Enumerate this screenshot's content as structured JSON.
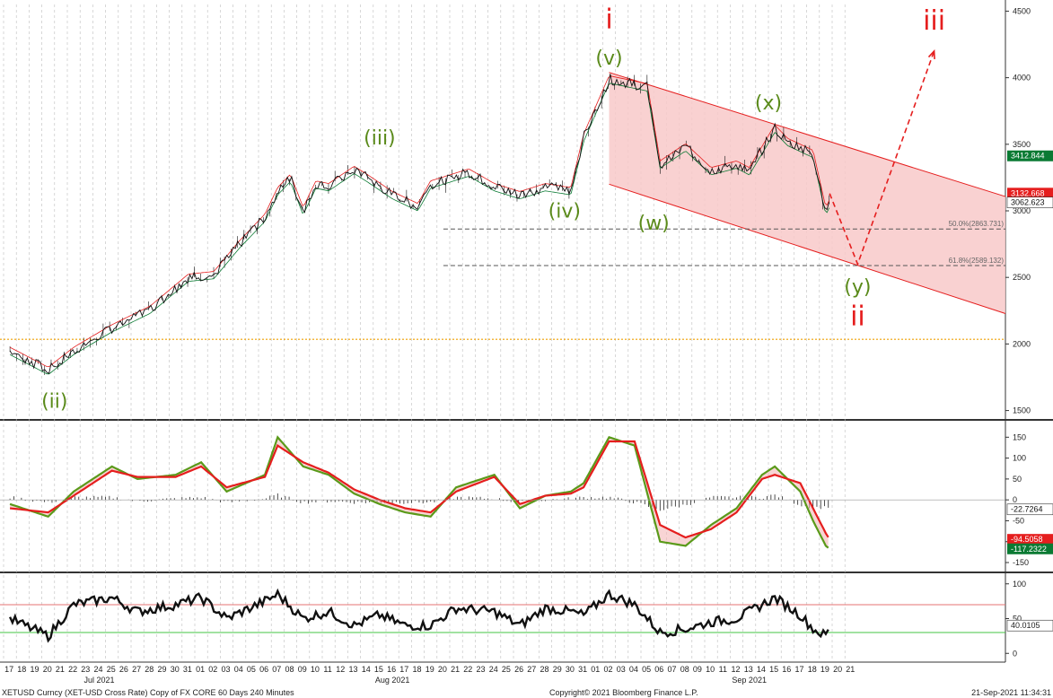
{
  "chart_data": {
    "type": "line",
    "instrument": "XETUSD Curncy (XET-USD Cross Rate) Copy of FX CORE 60 Days 240 Minutes",
    "copyright": "Copyright© 2021 Bloomberg Finance L.P.",
    "timestamp": "21-Sep-2021 11:34:31",
    "day_labels": [
      "17",
      "18",
      "19",
      "20",
      "21",
      "22",
      "23",
      "24",
      "25",
      "26",
      "27",
      "28",
      "29",
      "30",
      "31",
      "01",
      "02",
      "03",
      "04",
      "05",
      "06",
      "07",
      "08",
      "09",
      "10",
      "11",
      "12",
      "13",
      "14",
      "15",
      "16",
      "17",
      "18",
      "19",
      "20",
      "21",
      "22",
      "23",
      "24",
      "25",
      "26",
      "27",
      "28",
      "29",
      "30",
      "31",
      "01",
      "02",
      "03",
      "04",
      "05",
      "06",
      "07",
      "08",
      "09",
      "10",
      "11",
      "12",
      "13",
      "14",
      "15",
      "16",
      "17",
      "18",
      "19",
      "20",
      "21"
    ],
    "month_labels": [
      {
        "label": "Jul 2021",
        "day_index": 7
      },
      {
        "label": "Aug 2021",
        "day_index": 30
      },
      {
        "label": "Sep 2021",
        "day_index": 58
      }
    ],
    "price_panel": {
      "yticks": [
        1500,
        2000,
        2500,
        3000,
        3500,
        4000,
        4500
      ],
      "ylim": [
        1450,
        4550
      ],
      "price_path": [
        [
          0,
          1950
        ],
        [
          3,
          1800
        ],
        [
          5,
          1950
        ],
        [
          8,
          2120
        ],
        [
          11,
          2260
        ],
        [
          14,
          2500
        ],
        [
          16,
          2520
        ],
        [
          18,
          2750
        ],
        [
          20,
          2950
        ],
        [
          21,
          3150
        ],
        [
          22,
          3250
        ],
        [
          23,
          3000
        ],
        [
          24,
          3200
        ],
        [
          25,
          3180
        ],
        [
          27,
          3310
        ],
        [
          28,
          3250
        ],
        [
          30,
          3120
        ],
        [
          32,
          3030
        ],
        [
          33,
          3200
        ],
        [
          36,
          3290
        ],
        [
          38,
          3180
        ],
        [
          40,
          3120
        ],
        [
          42,
          3180
        ],
        [
          44,
          3150
        ],
        [
          45,
          3550
        ],
        [
          47,
          3990
        ],
        [
          50,
          3930
        ],
        [
          51,
          3350
        ],
        [
          53,
          3480
        ],
        [
          55,
          3300
        ],
        [
          57,
          3350
        ],
        [
          58,
          3300
        ],
        [
          60,
          3620
        ],
        [
          61,
          3520
        ],
        [
          63,
          3430
        ],
        [
          64,
          3000
        ],
        [
          64.3,
          3060
        ]
      ],
      "last_values": [
        {
          "value": 3412.844,
          "label": "3412.844",
          "color": "#0a7a33"
        },
        {
          "value": 3132.668,
          "label": "3132.668",
          "color": "#e51e1e"
        },
        {
          "value": 3062.623,
          "label": "3062.623",
          "color": "#ffffff"
        }
      ],
      "horizontal_levels": [
        {
          "value": 2863.731,
          "label": "50.0%(2863.731)",
          "style": "dashed",
          "color": "#555555"
        },
        {
          "value": 2589.132,
          "label": "61.8%(2589.132)",
          "style": "dashed",
          "color": "#555555"
        },
        {
          "value": 2035,
          "label": "",
          "style": "dotted",
          "color": "#f0a000"
        }
      ],
      "channel": {
        "upper": [
          [
            47,
            4040
          ],
          [
            79,
            3080
          ]
        ],
        "lower": [
          [
            47,
            3200
          ],
          [
            79,
            2200
          ]
        ],
        "fill": "#f8c9c9",
        "stroke": "#e51e1e"
      },
      "wave_labels": [
        {
          "text": "(ii)",
          "day": 3.5,
          "price": 1520,
          "color": "#5a8a1a"
        },
        {
          "text": "(iii)",
          "day": 29,
          "price": 3500,
          "color": "#5a8a1a"
        },
        {
          "text": "(iv)",
          "day": 43.5,
          "price": 2950,
          "color": "#5a8a1a"
        },
        {
          "text": "(v)",
          "day": 47,
          "price": 4100,
          "color": "#5a8a1a"
        },
        {
          "text": "i",
          "day": 47,
          "price": 4370,
          "color": "#e51e1e"
        },
        {
          "text": "(w)",
          "day": 50.5,
          "price": 2860,
          "color": "#5a8a1a"
        },
        {
          "text": "(x)",
          "day": 59.5,
          "price": 3760,
          "color": "#5a8a1a"
        },
        {
          "text": "(y)",
          "day": 66.5,
          "price": 2380,
          "color": "#5a8a1a"
        },
        {
          "text": "ii",
          "day": 66.5,
          "price": 2140,
          "color": "#e51e1e"
        },
        {
          "text": "iii",
          "day": 72.5,
          "price": 4360,
          "color": "#e51e1e"
        }
      ],
      "projection": [
        [
          64.3,
          3130
        ],
        [
          66.5,
          2600
        ],
        [
          72.5,
          4200
        ]
      ],
      "projection_color": "#e51e1e"
    },
    "oscillator_panel": {
      "yticks": [
        -150,
        -100,
        -50,
        0,
        50,
        100,
        150
      ],
      "ylim": [
        -165,
        170
      ],
      "green_path": [
        [
          0,
          -10
        ],
        [
          3,
          -40
        ],
        [
          5,
          20
        ],
        [
          8,
          80
        ],
        [
          10,
          50
        ],
        [
          13,
          60
        ],
        [
          15,
          90
        ],
        [
          17,
          20
        ],
        [
          20,
          60
        ],
        [
          21,
          150
        ],
        [
          23,
          80
        ],
        [
          25,
          60
        ],
        [
          27,
          15
        ],
        [
          29,
          -10
        ],
        [
          31,
          -30
        ],
        [
          33,
          -40
        ],
        [
          35,
          30
        ],
        [
          38,
          60
        ],
        [
          40,
          -20
        ],
        [
          42,
          10
        ],
        [
          44,
          20
        ],
        [
          45,
          40
        ],
        [
          47,
          150
        ],
        [
          49,
          130
        ],
        [
          51,
          -100
        ],
        [
          53,
          -110
        ],
        [
          55,
          -60
        ],
        [
          57,
          -20
        ],
        [
          59,
          60
        ],
        [
          60,
          80
        ],
        [
          62,
          20
        ],
        [
          63,
          -50
        ],
        [
          64,
          -110
        ],
        [
          64.3,
          -117
        ]
      ],
      "red_path": [
        [
          0,
          -20
        ],
        [
          3,
          -30
        ],
        [
          5,
          10
        ],
        [
          8,
          70
        ],
        [
          10,
          55
        ],
        [
          13,
          55
        ],
        [
          15,
          80
        ],
        [
          17,
          30
        ],
        [
          20,
          55
        ],
        [
          21,
          130
        ],
        [
          23,
          90
        ],
        [
          25,
          65
        ],
        [
          27,
          25
        ],
        [
          29,
          0
        ],
        [
          31,
          -20
        ],
        [
          33,
          -30
        ],
        [
          35,
          20
        ],
        [
          38,
          55
        ],
        [
          40,
          -10
        ],
        [
          42,
          10
        ],
        [
          44,
          15
        ],
        [
          45,
          30
        ],
        [
          47,
          140
        ],
        [
          49,
          140
        ],
        [
          51,
          -60
        ],
        [
          53,
          -90
        ],
        [
          55,
          -70
        ],
        [
          57,
          -30
        ],
        [
          59,
          50
        ],
        [
          60,
          60
        ],
        [
          62,
          40
        ],
        [
          63,
          -20
        ],
        [
          64,
          -80
        ],
        [
          64.3,
          -94
        ]
      ],
      "last_values": [
        {
          "value": -22.7264,
          "label": "-22.7264",
          "color": "#ffffff"
        },
        {
          "value": -94.5058,
          "label": "-94.5058",
          "color": "#e51e1e"
        },
        {
          "value": -117.2322,
          "label": "-117.2322",
          "color": "#0a7a33"
        }
      ]
    },
    "rsi_panel": {
      "yticks": [
        0,
        50,
        100
      ],
      "ylim": [
        -10,
        110
      ],
      "upper_band": 70,
      "lower_band": 30,
      "path": [
        [
          0,
          50
        ],
        [
          3,
          25
        ],
        [
          5,
          70
        ],
        [
          8,
          80
        ],
        [
          10,
          60
        ],
        [
          13,
          70
        ],
        [
          15,
          80
        ],
        [
          17,
          50
        ],
        [
          20,
          75
        ],
        [
          21,
          85
        ],
        [
          23,
          50
        ],
        [
          25,
          60
        ],
        [
          27,
          40
        ],
        [
          29,
          55
        ],
        [
          31,
          40
        ],
        [
          33,
          40
        ],
        [
          35,
          65
        ],
        [
          38,
          60
        ],
        [
          40,
          40
        ],
        [
          42,
          65
        ],
        [
          44,
          60
        ],
        [
          45,
          55
        ],
        [
          47,
          85
        ],
        [
          49,
          70
        ],
        [
          51,
          30
        ],
        [
          53,
          35
        ],
        [
          55,
          45
        ],
        [
          57,
          50
        ],
        [
          59,
          70
        ],
        [
          60,
          80
        ],
        [
          62,
          55
        ],
        [
          63,
          35
        ],
        [
          64,
          25
        ],
        [
          64.3,
          40
        ]
      ],
      "last_values": [
        {
          "value": 40.0105,
          "label": "40.0105",
          "color": "#ffffff"
        }
      ]
    }
  }
}
